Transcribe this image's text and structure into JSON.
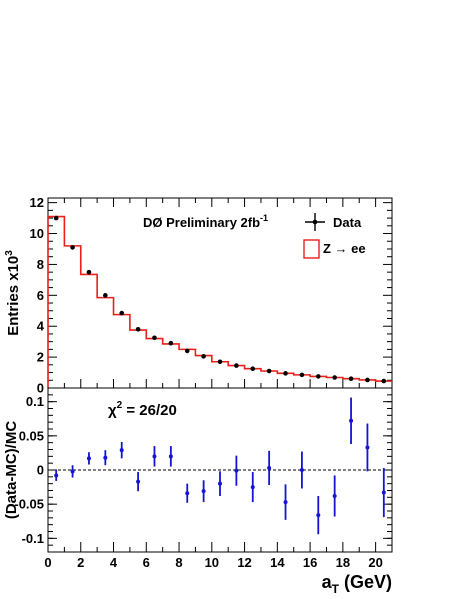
{
  "chart_data": [
    {
      "type": "histogram",
      "panel": "top",
      "annotation": "DØ Preliminary 2fb",
      "annotation_sup": "-1",
      "ylabel": "Entries x10",
      "ylabel_sup": "3",
      "xlim": [
        0,
        21
      ],
      "ylim": [
        0,
        12.3
      ],
      "yticks": [
        0,
        2,
        4,
        6,
        8,
        10,
        12
      ],
      "ytick_labels": [
        "0",
        "2",
        "4",
        "6",
        "8",
        "10",
        "12"
      ],
      "legend_position": "top-right",
      "bin_edges": [
        0,
        1,
        2,
        3,
        4,
        5,
        6,
        7,
        8,
        9,
        10,
        11,
        12,
        13,
        14,
        15,
        16,
        17,
        18,
        19,
        20,
        21
      ],
      "series": [
        {
          "name": "Data",
          "style": "points-with-errors",
          "color": "#000000",
          "x": [
            0.5,
            1.5,
            2.5,
            3.5,
            4.5,
            5.5,
            6.5,
            7.5,
            8.5,
            9.5,
            10.5,
            11.5,
            12.5,
            13.5,
            14.5,
            15.5,
            16.5,
            17.5,
            18.5,
            19.5,
            20.5
          ],
          "y": [
            11.0,
            9.1,
            7.5,
            6.0,
            4.85,
            3.8,
            3.25,
            2.9,
            2.4,
            2.05,
            1.7,
            1.45,
            1.25,
            1.1,
            0.95,
            0.85,
            0.75,
            0.68,
            0.6,
            0.52,
            0.45
          ]
        },
        {
          "name": "Z → ee",
          "style": "step",
          "color": "#e8201a",
          "x": [
            0.5,
            1.5,
            2.5,
            3.5,
            4.5,
            5.5,
            6.5,
            7.5,
            8.5,
            9.5,
            10.5,
            11.5,
            12.5,
            13.5,
            14.5,
            15.5,
            16.5,
            17.5,
            18.5,
            19.5,
            20.5
          ],
          "y": [
            11.1,
            9.2,
            7.35,
            5.85,
            4.75,
            3.75,
            3.2,
            2.85,
            2.5,
            2.1,
            1.7,
            1.45,
            1.25,
            1.1,
            0.95,
            0.85,
            0.75,
            0.68,
            0.6,
            0.52,
            0.45
          ]
        }
      ]
    },
    {
      "type": "scatter",
      "panel": "bottom",
      "annotation": "χ",
      "annotation_sup": "2",
      "annotation_value": " = 26/20",
      "xlabel": "a",
      "xlabel_sub": "T",
      "xlabel_unit": " (GeV)",
      "ylabel": "(Data-MC)/MC",
      "xlim": [
        0,
        21
      ],
      "ylim": [
        -0.12,
        0.12
      ],
      "xticks": [
        0,
        2,
        4,
        6,
        8,
        10,
        12,
        14,
        16,
        18,
        20
      ],
      "xtick_labels": [
        "0",
        "2",
        "4",
        "6",
        "8",
        "10",
        "12",
        "14",
        "16",
        "18",
        "20"
      ],
      "yticks": [
        -0.1,
        -0.05,
        0,
        0.05,
        0.1
      ],
      "ytick_labels": [
        "-0.1",
        "-0.05",
        "0",
        "0.05",
        "0.1"
      ],
      "reference_line": 0,
      "series": [
        {
          "name": "",
          "style": "points-with-errors",
          "color": "#1414d2",
          "x": [
            0.5,
            1.5,
            2.5,
            3.5,
            4.5,
            5.5,
            6.5,
            7.5,
            8.5,
            9.5,
            10.5,
            11.5,
            12.5,
            13.5,
            14.5,
            15.5,
            16.5,
            17.5,
            18.5,
            19.5,
            20.5
          ],
          "y": [
            -0.008,
            -0.002,
            0.017,
            0.018,
            0.029,
            -0.017,
            0.02,
            0.02,
            -0.034,
            -0.031,
            -0.02,
            -0.001,
            -0.025,
            0.003,
            -0.047,
            0.0,
            -0.066,
            -0.038,
            0.072,
            0.033,
            -0.033
          ],
          "err": [
            0.008,
            0.009,
            0.009,
            0.011,
            0.012,
            0.014,
            0.015,
            0.015,
            0.014,
            0.016,
            0.018,
            0.022,
            0.022,
            0.025,
            0.026,
            0.027,
            0.028,
            0.03,
            0.034,
            0.035,
            0.036
          ]
        }
      ]
    }
  ]
}
